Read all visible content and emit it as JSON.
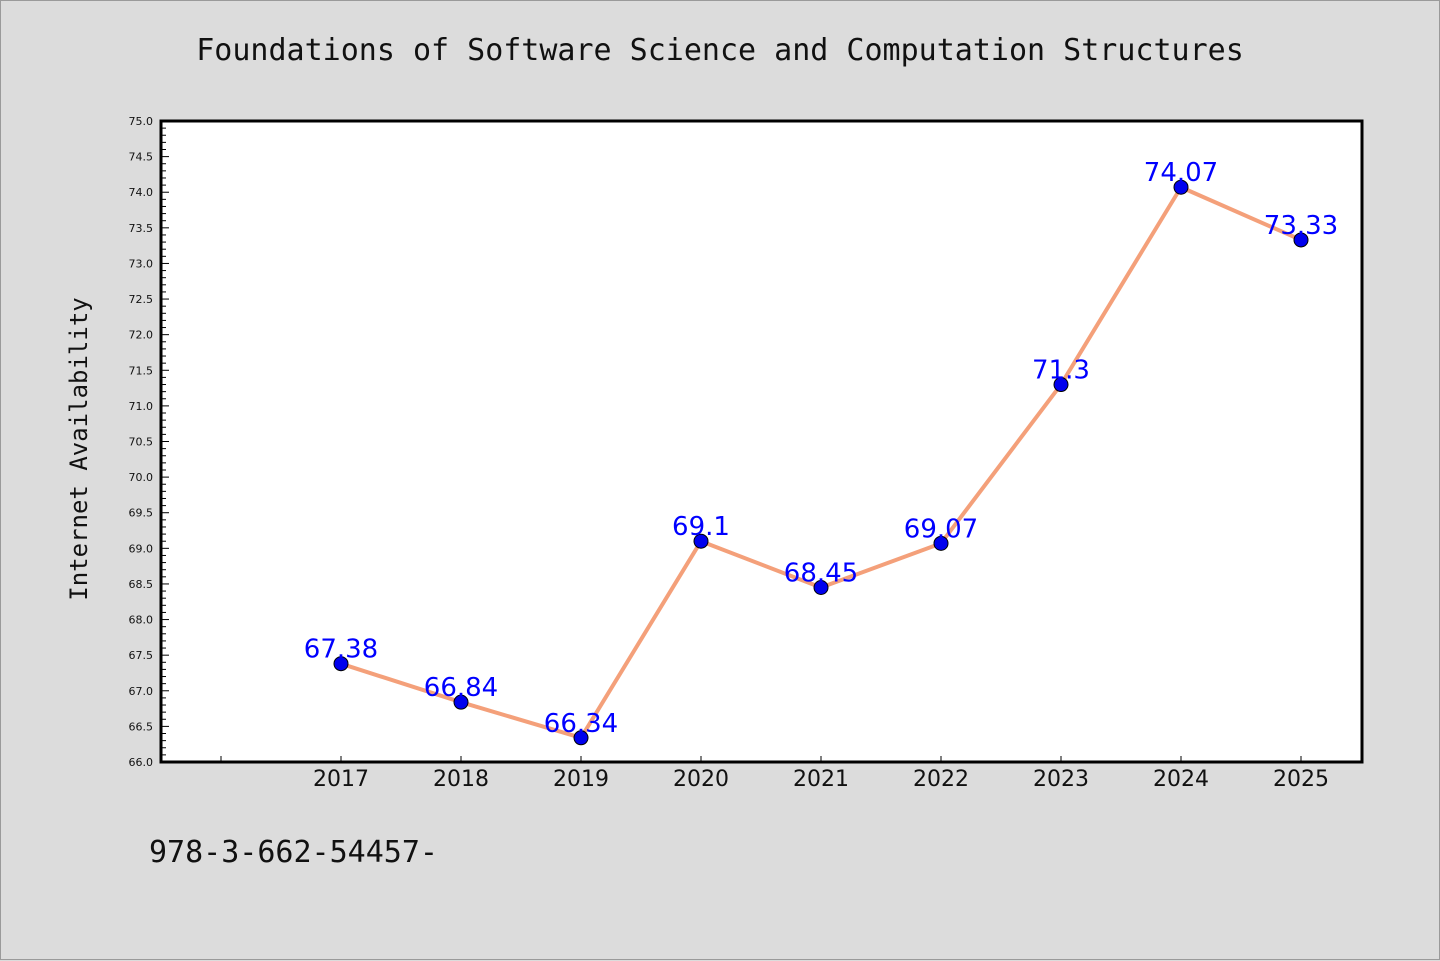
{
  "footer": {
    "code": "978-3-662-54457-"
  },
  "chart_data": {
    "type": "line",
    "title": "Foundations of Software Science and Computation Structures",
    "xlabel": "",
    "ylabel": "Internet Availability",
    "categories": [
      "2017",
      "2018",
      "2019",
      "2020",
      "2021",
      "2022",
      "2023",
      "2024",
      "2025"
    ],
    "series": [
      {
        "values": [
          67.38,
          66.84,
          66.34,
          69.1,
          68.45,
          69.07,
          71.3,
          74.07,
          73.33
        ],
        "data_labels": [
          "67.38",
          "66.84",
          "66.34",
          "69.1",
          "68.45",
          "69.07",
          "71.3",
          "74.07",
          "73.33"
        ],
        "line_color": "#f4a07a",
        "marker_color": "#0000ee",
        "label_color": "#0000ff"
      }
    ],
    "ylim": [
      66.0,
      75.0
    ],
    "yticks": [
      "66.0",
      "66.5",
      "67.0",
      "67.5",
      "68.0",
      "68.5",
      "69.0",
      "69.5",
      "70.0",
      "70.5",
      "71.0",
      "71.5",
      "72.0",
      "72.5",
      "73.0",
      "73.5",
      "74.0",
      "74.5",
      "75.0"
    ],
    "grid": false,
    "legend": "none"
  }
}
